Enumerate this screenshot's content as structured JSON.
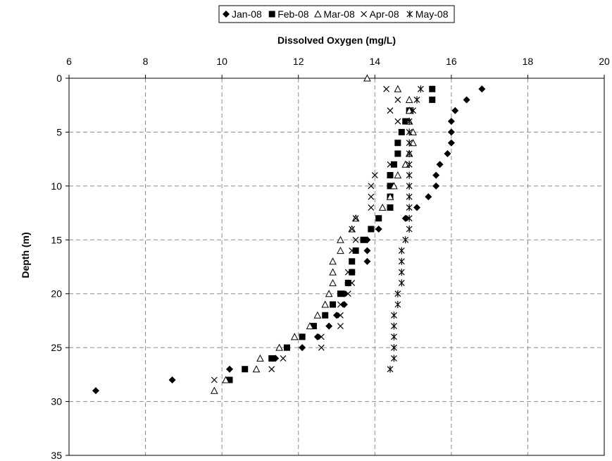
{
  "chart_data": {
    "type": "scatter",
    "title": "",
    "xlabel": "Dissolved Oxygen (mg/L)",
    "ylabel": "Depth (m)",
    "x_axis_position": "top",
    "y_axis_inverted": true,
    "xlim": [
      6,
      20
    ],
    "ylim": [
      0,
      35
    ],
    "x_ticks": [
      "6",
      "8",
      "10",
      "12",
      "14",
      "16",
      "18",
      "20"
    ],
    "y_ticks": [
      "0",
      "5",
      "10",
      "15",
      "20",
      "25",
      "30",
      "35"
    ],
    "grid": true,
    "legend_position": "top",
    "series": [
      {
        "name": "Jan-08",
        "marker": "diamond",
        "points": [
          [
            16.8,
            1
          ],
          [
            16.4,
            2
          ],
          [
            16.1,
            3
          ],
          [
            16.0,
            4
          ],
          [
            16.0,
            5
          ],
          [
            16.0,
            6
          ],
          [
            15.9,
            7
          ],
          [
            15.7,
            8
          ],
          [
            15.6,
            9
          ],
          [
            15.6,
            10
          ],
          [
            15.4,
            11
          ],
          [
            15.1,
            12
          ],
          [
            14.8,
            13
          ],
          [
            14.1,
            14
          ],
          [
            13.8,
            15
          ],
          [
            13.8,
            16
          ],
          [
            13.8,
            17
          ],
          [
            13.4,
            18
          ],
          [
            13.3,
            19
          ],
          [
            13.2,
            20
          ],
          [
            13.2,
            21
          ],
          [
            13.0,
            22
          ],
          [
            12.8,
            23
          ],
          [
            12.5,
            24
          ],
          [
            12.1,
            25
          ],
          [
            11.4,
            26
          ],
          [
            10.2,
            27
          ],
          [
            8.7,
            28
          ],
          [
            6.7,
            29
          ]
        ]
      },
      {
        "name": "Feb-08",
        "marker": "square",
        "points": [
          [
            15.5,
            1
          ],
          [
            15.5,
            2
          ],
          [
            14.9,
            3
          ],
          [
            14.8,
            4
          ],
          [
            14.7,
            5
          ],
          [
            14.6,
            6
          ],
          [
            14.6,
            7
          ],
          [
            14.5,
            8
          ],
          [
            14.4,
            9
          ],
          [
            14.4,
            10
          ],
          [
            14.4,
            11
          ],
          [
            14.4,
            12
          ],
          [
            14.1,
            13
          ],
          [
            13.9,
            14
          ],
          [
            13.7,
            15
          ],
          [
            13.5,
            16
          ],
          [
            13.4,
            17
          ],
          [
            13.4,
            18
          ],
          [
            13.3,
            19
          ],
          [
            13.1,
            20
          ],
          [
            12.9,
            21
          ],
          [
            12.7,
            22
          ],
          [
            12.4,
            23
          ],
          [
            12.1,
            24
          ],
          [
            11.7,
            25
          ],
          [
            11.3,
            26
          ],
          [
            10.6,
            27
          ],
          [
            10.2,
            28
          ]
        ]
      },
      {
        "name": "Mar-08",
        "marker": "triangle",
        "points": [
          [
            13.8,
            0
          ],
          [
            14.6,
            1
          ],
          [
            14.9,
            2
          ],
          [
            14.9,
            3
          ],
          [
            14.9,
            4
          ],
          [
            15.0,
            5
          ],
          [
            15.0,
            6
          ],
          [
            14.9,
            7
          ],
          [
            14.8,
            8
          ],
          [
            14.6,
            9
          ],
          [
            14.5,
            10
          ],
          [
            14.4,
            11
          ],
          [
            14.2,
            12
          ],
          [
            13.5,
            13
          ],
          [
            13.4,
            14
          ],
          [
            13.1,
            15
          ],
          [
            13.1,
            16
          ],
          [
            12.9,
            17
          ],
          [
            12.9,
            18
          ],
          [
            12.9,
            19
          ],
          [
            12.8,
            20
          ],
          [
            12.7,
            21
          ],
          [
            12.5,
            22
          ],
          [
            12.3,
            23
          ],
          [
            11.9,
            24
          ],
          [
            11.5,
            25
          ],
          [
            11.0,
            26
          ],
          [
            10.9,
            27
          ],
          [
            10.1,
            28
          ],
          [
            9.8,
            29
          ]
        ]
      },
      {
        "name": "Apr-08",
        "marker": "x",
        "points": [
          [
            14.3,
            1
          ],
          [
            14.6,
            2
          ],
          [
            14.4,
            3
          ],
          [
            14.6,
            4
          ],
          [
            14.7,
            5
          ],
          [
            14.6,
            6
          ],
          [
            14.6,
            7
          ],
          [
            14.4,
            8
          ],
          [
            14.0,
            9
          ],
          [
            13.9,
            10
          ],
          [
            13.9,
            11
          ],
          [
            13.9,
            12
          ],
          [
            13.5,
            13
          ],
          [
            13.4,
            14
          ],
          [
            13.5,
            15
          ],
          [
            13.4,
            16
          ],
          [
            13.4,
            17
          ],
          [
            13.3,
            18
          ],
          [
            13.4,
            19
          ],
          [
            13.3,
            20
          ],
          [
            13.1,
            21
          ],
          [
            13.1,
            22
          ],
          [
            13.1,
            23
          ],
          [
            12.6,
            24
          ],
          [
            12.6,
            25
          ],
          [
            11.6,
            26
          ],
          [
            11.3,
            27
          ],
          [
            9.8,
            28
          ]
        ]
      },
      {
        "name": "May-08",
        "marker": "asterisk",
        "points": [
          [
            15.2,
            1
          ],
          [
            15.1,
            2
          ],
          [
            15.0,
            3
          ],
          [
            14.9,
            4
          ],
          [
            14.9,
            5
          ],
          [
            14.9,
            6
          ],
          [
            14.9,
            7
          ],
          [
            14.9,
            8
          ],
          [
            14.9,
            9
          ],
          [
            14.9,
            10
          ],
          [
            14.9,
            11
          ],
          [
            14.9,
            12
          ],
          [
            14.9,
            13
          ],
          [
            14.9,
            14
          ],
          [
            14.8,
            15
          ],
          [
            14.7,
            16
          ],
          [
            14.7,
            17
          ],
          [
            14.7,
            18
          ],
          [
            14.7,
            19
          ],
          [
            14.6,
            20
          ],
          [
            14.6,
            21
          ],
          [
            14.5,
            22
          ],
          [
            14.5,
            23
          ],
          [
            14.5,
            24
          ],
          [
            14.5,
            25
          ],
          [
            14.5,
            26
          ],
          [
            14.4,
            27
          ]
        ]
      }
    ]
  }
}
